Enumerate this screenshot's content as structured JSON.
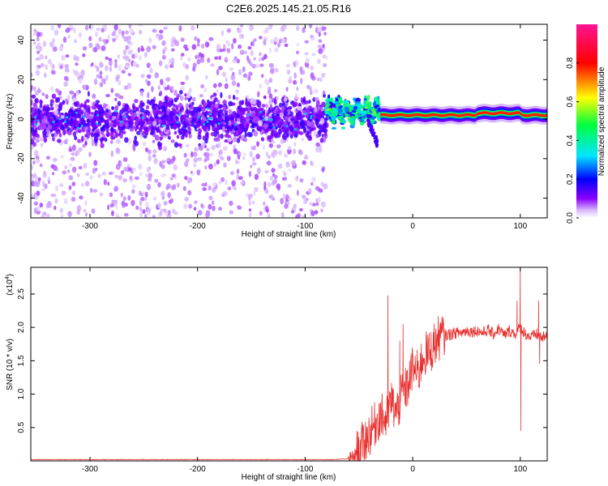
{
  "title": "C2E6.2025.145.21.05.R16",
  "chart_data": [
    {
      "type": "heatmap",
      "xlabel": "Height of straight line (km)",
      "ylabel": "Frequency (Hz)",
      "xlim": [
        -355,
        125
      ],
      "ylim": [
        -50,
        48
      ],
      "x_ticks": [
        -300,
        -200,
        -100,
        0,
        100
      ],
      "y_ticks": [
        -40,
        -20,
        0,
        20,
        40
      ],
      "colorbar": {
        "label": "Normalized spectral amplitude",
        "range": [
          0,
          1
        ],
        "ticks": [
          0.0,
          0.2,
          0.4,
          0.6,
          0.8
        ],
        "tick_labels": [
          "0.0",
          "0.2",
          "0.4",
          "0.6",
          "0.8"
        ],
        "colors": [
          "#ffffff",
          "#8a00ff",
          "#0000ff",
          "#00e5ff",
          "#00ff40",
          "#ffff00",
          "#ff0000",
          "#ff1493"
        ]
      },
      "regions": [
        {
          "x_range": [
            -355,
            -80
          ],
          "frequency_center": 0,
          "frequency_spread": 48,
          "core_band": [
            -12,
            12
          ],
          "level": "low"
        },
        {
          "x_range": [
            -80,
            -30
          ],
          "frequency_center": 4,
          "frequency_spread": 10,
          "level": "medium"
        },
        {
          "x_range": [
            -30,
            125
          ],
          "frequency_center": 2,
          "frequency_spread": 4,
          "level": "high"
        }
      ]
    },
    {
      "type": "line",
      "xlabel": "Height of straight line (km)",
      "ylabel": "SNR (10 * v/v)",
      "y_multiplier_label": "(x10",
      "y_multiplier_exponent": "4",
      "y_multiplier_close": ")",
      "xlim": [
        -355,
        125
      ],
      "ylim": [
        0,
        2.9
      ],
      "x_ticks": [
        -300,
        -200,
        -100,
        0,
        100
      ],
      "y_ticks": [
        0.5,
        1.0,
        1.5,
        2.0,
        2.5
      ],
      "color": "#e8312f",
      "series": [
        {
          "x": [
            -355,
            -300,
            -250,
            -200,
            -150,
            -100,
            -75,
            -60,
            -55,
            -50,
            -45,
            -40,
            -35,
            -30,
            -25,
            -20,
            -15,
            -10,
            -5,
            0,
            5,
            10,
            15,
            20,
            25,
            30,
            35,
            40,
            45,
            50,
            55,
            60,
            65,
            70,
            75,
            80,
            85,
            90,
            95,
            100,
            105,
            110,
            115,
            120,
            125
          ],
          "y": [
            0.02,
            0.02,
            0.02,
            0.02,
            0.02,
            0.02,
            0.02,
            0.03,
            0.06,
            0.15,
            0.3,
            0.42,
            0.55,
            0.7,
            0.6,
            0.9,
            0.7,
            1.0,
            1.1,
            1.4,
            1.3,
            1.6,
            1.6,
            1.75,
            1.85,
            1.88,
            1.9,
            1.92,
            1.92,
            1.95,
            1.94,
            1.95,
            1.92,
            1.96,
            1.9,
            1.98,
            1.88,
            1.95,
            1.9,
            2.0,
            1.9,
            1.85,
            1.9,
            1.85,
            1.85
          ]
        }
      ],
      "spikes": [
        {
          "x": -23,
          "y": 2.48
        },
        {
          "x": -12,
          "y": 1.8
        },
        {
          "x": -9,
          "y": 2.05
        },
        {
          "x": 100,
          "y": 2.9
        },
        {
          "x": 100.5,
          "y": 0.45
        },
        {
          "x": 97,
          "y": 2.4
        },
        {
          "x": 117,
          "y": 2.4
        },
        {
          "x": 118,
          "y": 1.45
        }
      ]
    }
  ]
}
